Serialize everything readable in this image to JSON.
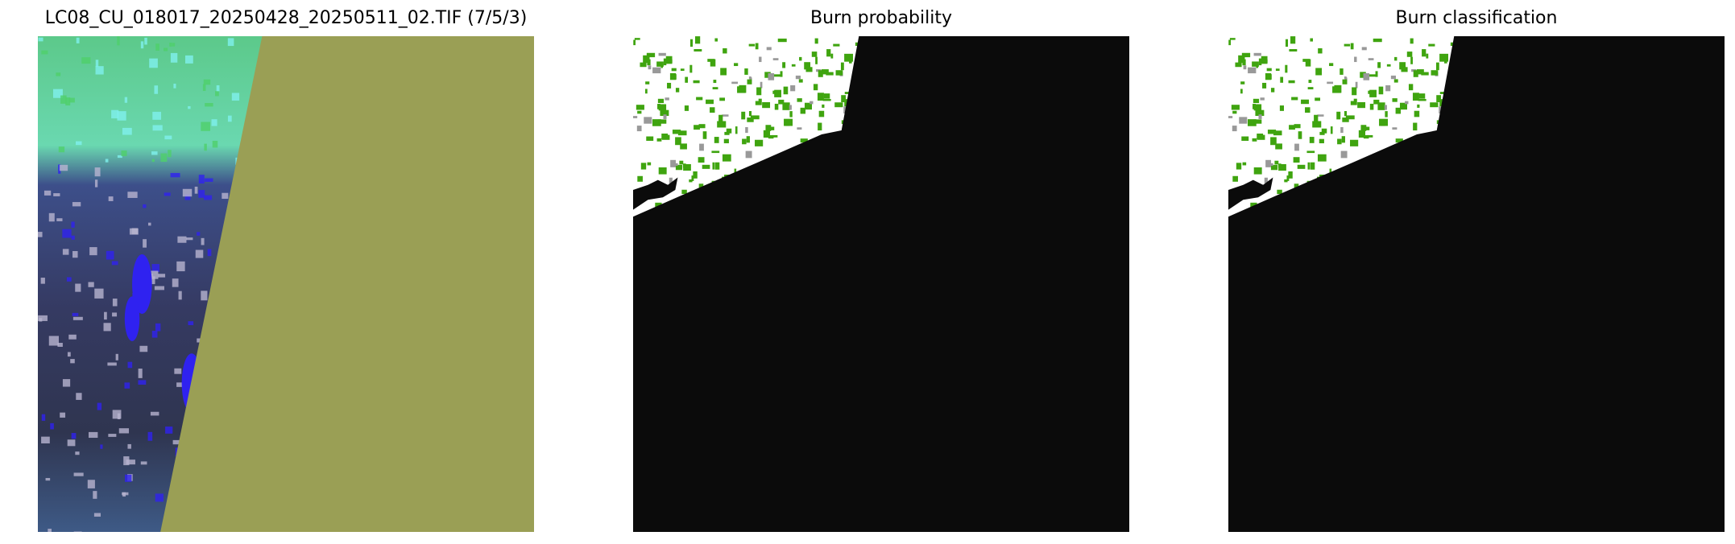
{
  "panels": [
    {
      "title": "LC08_CU_018017_20250428_20250511_02.TIF (7/5/3)"
    },
    {
      "title": "Burn probability"
    },
    {
      "title": "Burn classification"
    }
  ],
  "colors": {
    "nodata_olive": "#9a9f55",
    "mask_black": "#0b0b0b",
    "burn_green": "#3fa40f",
    "unburned_white": "#ffffff",
    "water_blue": "#2f22f0",
    "vegetation_green": "#4fd06a",
    "cloud_cyan": "#7ff0ee",
    "dark_land": "#2a2c4a"
  }
}
